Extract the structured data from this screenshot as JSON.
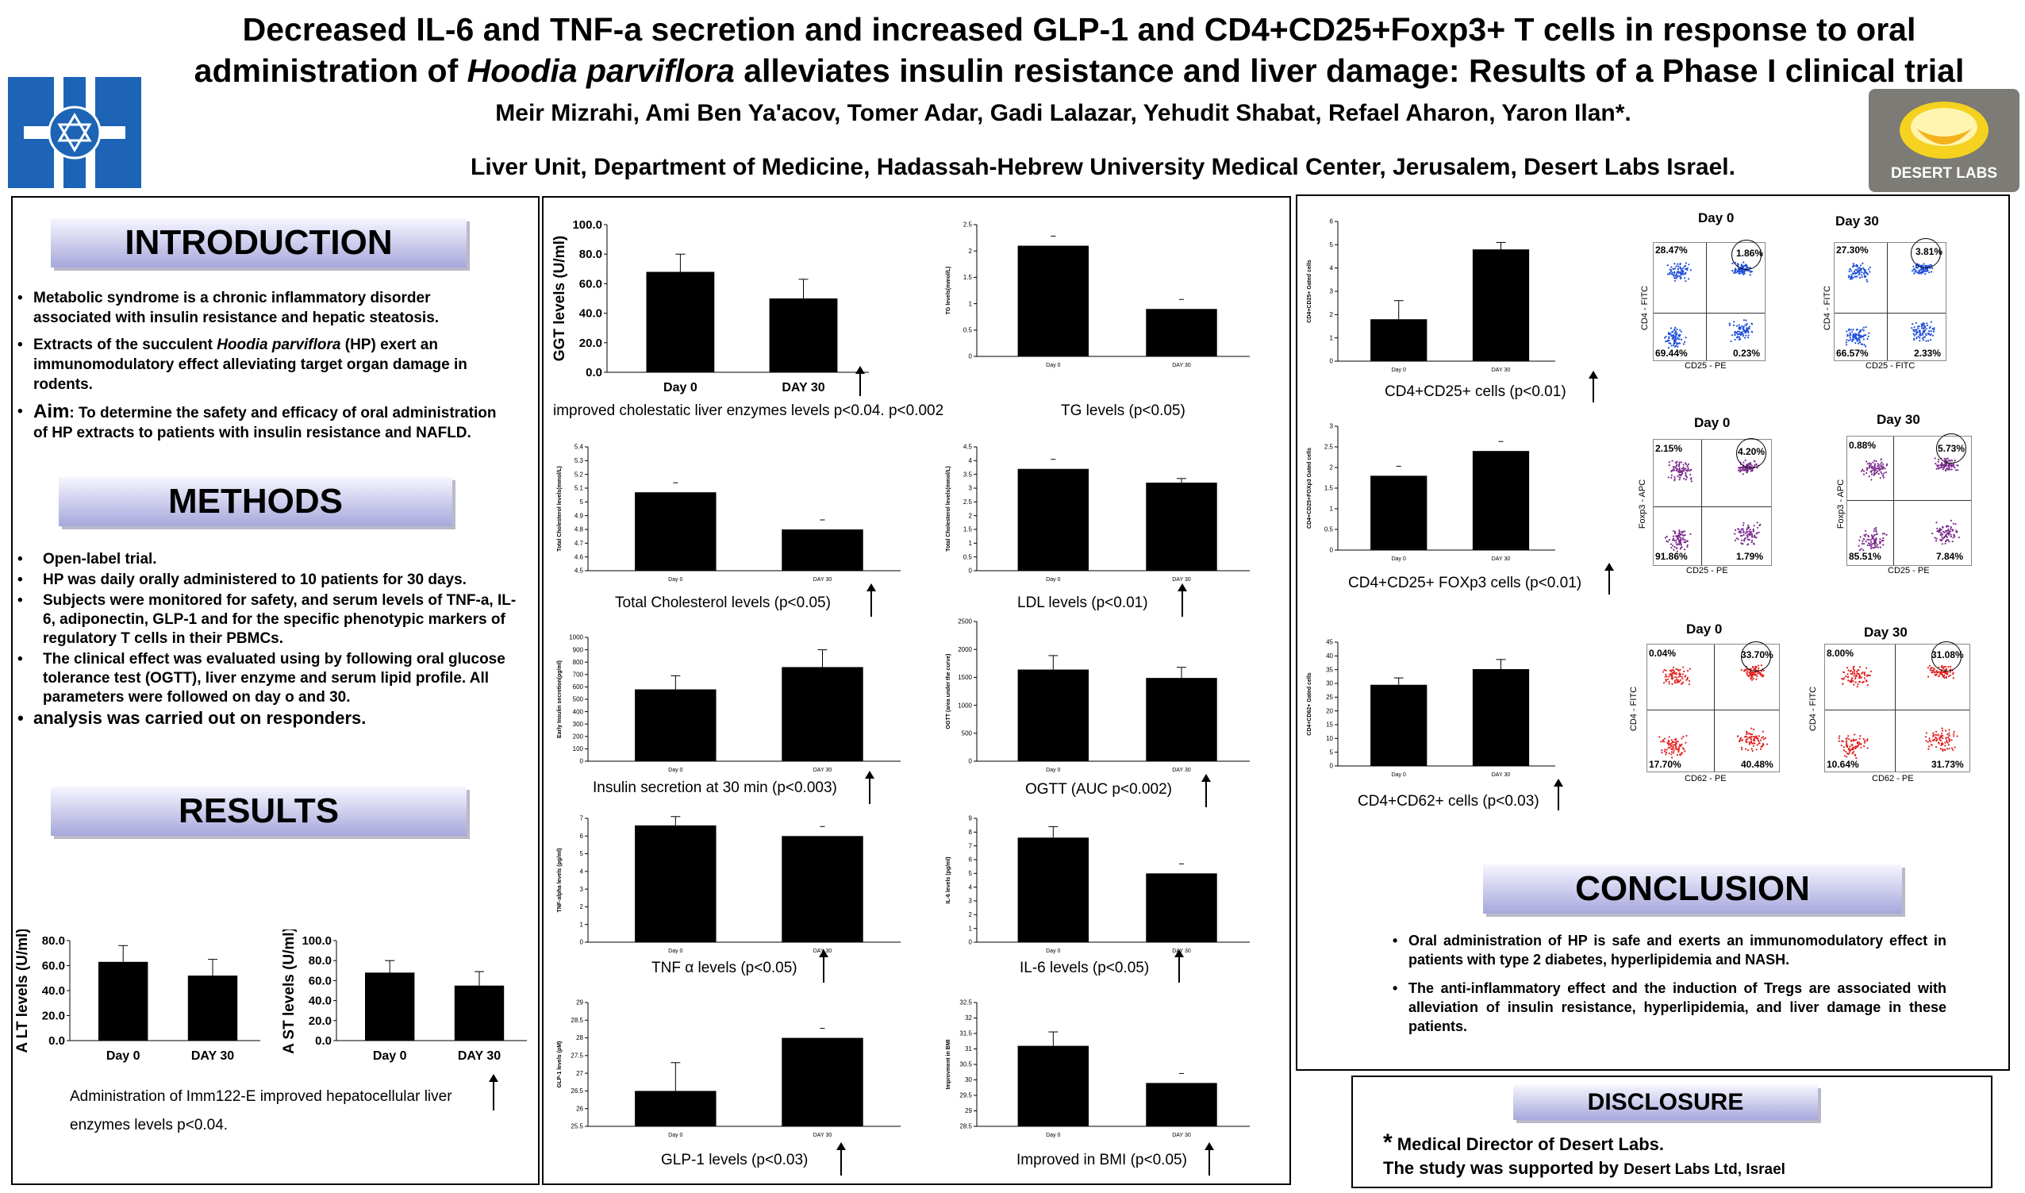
{
  "header": {
    "title_line1": "Decreased IL-6 and TNF-a secretion and increased GLP-1 and CD4+CD25+Foxp3+ T cells in response to oral",
    "title_line2_pre": "administration of ",
    "title_line2_italic": "Hoodia parviflora",
    "title_line2_post": " alleviates insulin resistance and liver damage: Results of a Phase I clinical trial",
    "authors": "Meir Mizrahi, Ami Ben Ya'acov, Tomer Adar,  Gadi Lalazar, Yehudit Shabat, Refael Aharon,  Yaron Ilan*.",
    "affiliation": "Liver Unit, Department of Medicine, Hadassah-Hebrew University Medical Center, Jerusalem, Desert Labs   Israel.",
    "logo_right_text": "DESERT LABS",
    "colors": {
      "logo_left": "#1d64b6",
      "logo_right": "#7c7b75"
    }
  },
  "left": {
    "intro_heading": "INTRODUCTION",
    "intro_b1": "Metabolic syndrome is a chronic inflammatory disorder associated with insulin resistance and hepatic steatosis.",
    "intro_b2_pre": "Extracts of the succulent ",
    "intro_b2_italic": "Hoodia parviflora",
    "intro_b2_post": " (HP) exert an immunomodulatory effect alleviating target organ damage in rodents.",
    "aim_label": "Aim",
    "aim_text": ": To determine the safety and efficacy of oral administration of HP extracts to patients with insulin resistance and NAFLD.",
    "methods_heading": "METHODS",
    "methods": [
      "Open-label trial.",
      "HP was daily orally administered to 10 patients for 30 days.",
      "Subjects were monitored for safety, and serum levels of TNF-a, IL-6, adiponectin, GLP-1 and for the specific phenotypic markers of regulatory T cells in their PBMCs.",
      "The clinical effect was evaluated using by following oral glucose tolerance test (OGTT), liver enzyme and serum lipid profile. All parameters were followed on day o and 30.",
      "analysis was carried out on responders."
    ],
    "results_heading": "RESULTS",
    "alt_caption_1": "Administration of Imm122-E improved hepatocellular liver",
    "alt_caption_2": "enzymes levels p<0.04."
  },
  "middle": {
    "captions": {
      "ggt": "improved cholestatic liver enzymes levels p<0.04. p<0.002",
      "tg": "TG levels (p<0.05)",
      "chol": "Total Cholesterol  levels (p<0.05)",
      "ldl": "LDL  levels (p<0.01)",
      "ins": "Insulin secretion at 30 min (p<0.003)",
      "ogtt": "OGTT (AUC p<0.002)",
      "tnf": "TNF α levels (p<0.05)",
      "il6": "IL-6 levels (p<0.05)",
      "glp": "GLP-1 levels (p<0.03)",
      "bmi": "Improved in BMI (p<0.05)"
    }
  },
  "right": {
    "captions": {
      "cd25": "CD4+CD25+ cells (p<0.01)",
      "foxp3": "CD4+CD25+ FOXp3 cells (p<0.01)",
      "cd62": "CD4+CD62+ cells (p<0.03)"
    },
    "flow": [
      {
        "day_left": "Day 0",
        "day_right": "Day 30",
        "left": {
          "ul": "28.47%",
          "ur": "1.86%",
          "ll": "69.44%",
          "lr": "0.23%",
          "ylab": "CD4 - FITC",
          "xlab": "CD25 - PE"
        },
        "right": {
          "ul": "27.30%",
          "ur": "3.81%",
          "ll": "66.57%",
          "lr": "2.33%",
          "ylab": "CD4 - FITC",
          "xlab": "CD25 - FITC"
        }
      },
      {
        "day_left": "Day 0",
        "day_right": "Day 30",
        "left": {
          "ul": "2.15%",
          "ur": "4.20%",
          "ll": "91.86%",
          "lr": "1.79%",
          "ylab": "Foxp3 - APC",
          "xlab": "CD25 - PE"
        },
        "right": {
          "ul": "0.88%",
          "ur": "5.73%",
          "ll": "85.51%",
          "lr": "7.84%",
          "ylab": "Foxp3 - APC",
          "xlab": "CD25 - PE"
        }
      },
      {
        "day_left": "Day 0",
        "day_right": "Day 30",
        "left": {
          "ul": "0.04%",
          "ur": "33.70%",
          "ll": "17.70%",
          "lr": "40.48%",
          "ylab": "CD4 - FITC",
          "xlab": "CD62 - PE"
        },
        "right": {
          "ul": "8.00%",
          "ur": "31.08%",
          "ll": "10.64%",
          "lr": "31.73%",
          "ylab": "CD4 - FITC",
          "xlab": "CD62 - PE"
        }
      }
    ],
    "conclusion_heading": "CONCLUSION",
    "conclusions": [
      "Oral administration of HP is safe and exerts an immunomodulatory effect in patients with type 2 diabetes, hyperlipidemia and NASH.",
      "The anti-inflammatory effect and the induction of Tregs are associated with alleviation of insulin resistance, hyperlipidemia, and liver damage in these patients."
    ],
    "disclosure_heading": "DISCLOSURE",
    "disclosure_star": "*",
    "disclosure_line1": " Medical Director of Desert Labs.",
    "disclosure_line2": "The study was supported by ",
    "disclosure_line2_b": "Desert Labs Ltd,  Israel"
  },
  "chart_data": [
    {
      "id": "alt",
      "type": "bar",
      "categories": [
        "Day 0",
        "DAY 30"
      ],
      "values": [
        63,
        52
      ],
      "errors": [
        13,
        13
      ],
      "ylabel": "A LT levels (U/ml)",
      "ylim": [
        0,
        80
      ],
      "yticks": [
        "0.0",
        "20.0",
        "40.0",
        "60.0",
        "80.0"
      ]
    },
    {
      "id": "ast",
      "type": "bar",
      "categories": [
        "Day 0",
        "DAY 30"
      ],
      "values": [
        68,
        55
      ],
      "errors": [
        12,
        14
      ],
      "ylabel": "A ST levels (U/ml)",
      "ylim": [
        0,
        100
      ],
      "yticks": [
        "0.0",
        "20.0",
        "40.0",
        "60.0",
        "80.0",
        "100.0"
      ]
    },
    {
      "id": "ggt",
      "type": "bar",
      "categories": [
        "Day 0",
        "DAY 30"
      ],
      "values": [
        68,
        50
      ],
      "errors": [
        12,
        13
      ],
      "ylabel": "GGT levels (U/ml)",
      "ylim": [
        0,
        100
      ],
      "yticks": [
        "0.0",
        "20.0",
        "40.0",
        "60.0",
        "80.0",
        "100.0"
      ]
    },
    {
      "id": "tg",
      "type": "bar",
      "categories": [
        "Day 0",
        "DAY 30"
      ],
      "values": [
        2.1,
        0.9
      ],
      "errors": [
        0,
        0
      ],
      "ylabel": "TG levels(mmol/L)",
      "ylim": [
        0,
        2.5
      ],
      "yticks": [
        "0",
        "0.5",
        "1",
        "1.5",
        "2",
        "2.5"
      ]
    },
    {
      "id": "chol",
      "type": "bar",
      "categories": [
        "Day 0",
        "DAY 30"
      ],
      "values": [
        5.07,
        4.8
      ],
      "errors": [
        0,
        0
      ],
      "ylabel": "Total Cholesterol levels(mmol/L)",
      "ylim": [
        4.5,
        5.4
      ],
      "yticks": [
        "4.5",
        "4.6",
        "4.7",
        "4.8",
        "4.9",
        "5",
        "5.1",
        "5.2",
        "5.3",
        "5.4"
      ]
    },
    {
      "id": "ldl",
      "type": "bar",
      "categories": [
        "Day 0",
        "DAY 30"
      ],
      "values": [
        3.7,
        3.2
      ],
      "errors": [
        0,
        0.15
      ],
      "ylabel": "Total Cholesterol levels(mmol/L)",
      "ylim": [
        0,
        4.5
      ],
      "yticks": [
        "0",
        "0.5",
        "1",
        "1.5",
        "2",
        "2.5",
        "3",
        "3.5",
        "4",
        "4.5"
      ]
    },
    {
      "id": "ins",
      "type": "bar",
      "categories": [
        "Day 0",
        "DAY 30"
      ],
      "values": [
        580,
        760
      ],
      "errors": [
        110,
        140
      ],
      "ylabel": "Early Insulin secretion(pg/ml)",
      "ylim": [
        0,
        1000
      ],
      "yticks": [
        "0",
        "100",
        "200",
        "300",
        "400",
        "500",
        "600",
        "700",
        "800",
        "900",
        "1000"
      ]
    },
    {
      "id": "ogtt",
      "type": "bar",
      "categories": [
        "Day 0",
        "DAY 30"
      ],
      "values": [
        1640,
        1490
      ],
      "errors": [
        250,
        190
      ],
      "ylabel": "OGTT (area under the curve)",
      "ylim": [
        0,
        2500
      ],
      "yticks": [
        "0",
        "500",
        "1000",
        "1500",
        "2000",
        "2500"
      ]
    },
    {
      "id": "tnf",
      "type": "bar",
      "categories": [
        "Day 0",
        "DAY 30"
      ],
      "values": [
        6.6,
        6.0
      ],
      "errors": [
        0.5,
        0
      ],
      "ylabel": "TNF-alpha levels (pg/ml)",
      "ylim": [
        0,
        7
      ],
      "yticks": [
        "0",
        "1",
        "2",
        "3",
        "4",
        "5",
        "6",
        "7"
      ]
    },
    {
      "id": "il6",
      "type": "bar",
      "categories": [
        "Day 0",
        "DAY 30"
      ],
      "values": [
        7.6,
        5.0
      ],
      "errors": [
        0.8,
        0
      ],
      "ylabel": "IL-6 levels (pg/ml)",
      "ylim": [
        0,
        9
      ],
      "yticks": [
        "0",
        "1",
        "2",
        "3",
        "4",
        "5",
        "6",
        "7",
        "8",
        "9"
      ]
    },
    {
      "id": "glp",
      "type": "bar",
      "categories": [
        "Day 0",
        "DAY 30"
      ],
      "values": [
        26.5,
        28.0
      ],
      "errors": [
        0.8,
        0
      ],
      "ylabel": "GLP-1 levels (pM)",
      "ylim": [
        25.5,
        29
      ],
      "yticks": [
        "25.5",
        "26",
        "26.5",
        "27",
        "27.5",
        "28",
        "28.5",
        "29"
      ]
    },
    {
      "id": "bmi",
      "type": "bar",
      "categories": [
        "Day 0",
        "DAY 30"
      ],
      "values": [
        31.1,
        29.9
      ],
      "errors": [
        0.45,
        0
      ],
      "ylabel": "Improvment in BMI",
      "ylim": [
        28.5,
        32.5
      ],
      "yticks": [
        "28.5",
        "29",
        "29.5",
        "30",
        "30.5",
        "31",
        "31.5",
        "32",
        "32.5"
      ]
    },
    {
      "id": "cd25",
      "type": "bar",
      "categories": [
        "Day 0",
        "DAY 30"
      ],
      "values": [
        1.8,
        4.8
      ],
      "errors": [
        0.8,
        0.3
      ],
      "ylabel": "CD4+CD25+ Gated cells",
      "ylim": [
        0,
        6
      ],
      "yticks": [
        "0",
        "1",
        "2",
        "3",
        "4",
        "5",
        "6"
      ]
    },
    {
      "id": "foxp3",
      "type": "bar",
      "categories": [
        "Day 0",
        "DAY 30"
      ],
      "values": [
        1.8,
        2.4
      ],
      "errors": [
        0,
        0
      ],
      "ylabel": "CD4+CD25+FOXp3 Gated cells",
      "ylim": [
        0,
        3
      ],
      "yticks": [
        "0",
        "0.5",
        "1",
        "1.5",
        "2",
        "2.5",
        "3"
      ]
    },
    {
      "id": "cd62",
      "type": "bar",
      "categories": [
        "Day 0",
        "DAY 30"
      ],
      "values": [
        29.5,
        35.2
      ],
      "errors": [
        2.5,
        3.5
      ],
      "ylabel": "CD4+CD62+ Gated cells",
      "ylim": [
        0,
        45
      ],
      "yticks": [
        "0",
        "5",
        "10",
        "15",
        "20",
        "25",
        "30",
        "35",
        "40",
        "45"
      ]
    }
  ]
}
